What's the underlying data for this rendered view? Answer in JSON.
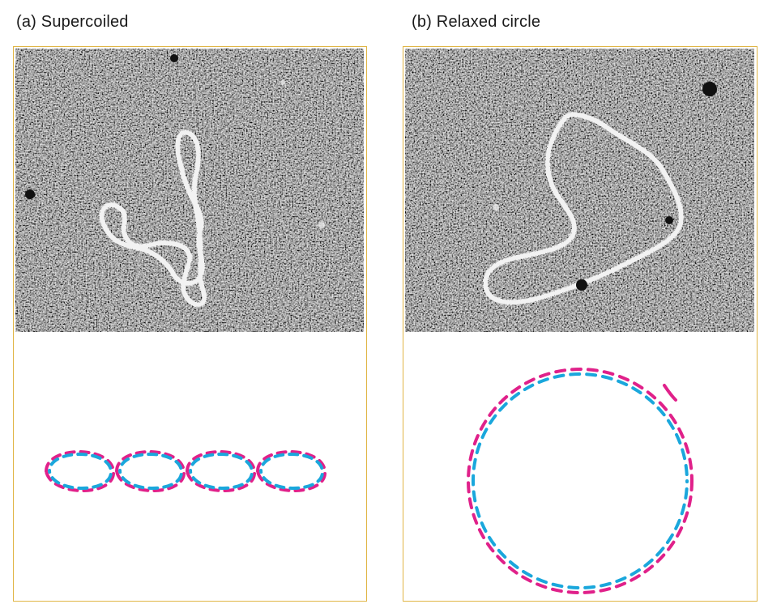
{
  "panels": [
    {
      "id": "a",
      "label": "(a) Supercoiled"
    },
    {
      "id": "b",
      "label": "(b) Relaxed circle"
    }
  ],
  "colors": {
    "frame": "#e0b545",
    "strand_1": "#e0218a",
    "strand_2": "#1aa7dc",
    "micrograph_bg": "#3a3a3a"
  }
}
